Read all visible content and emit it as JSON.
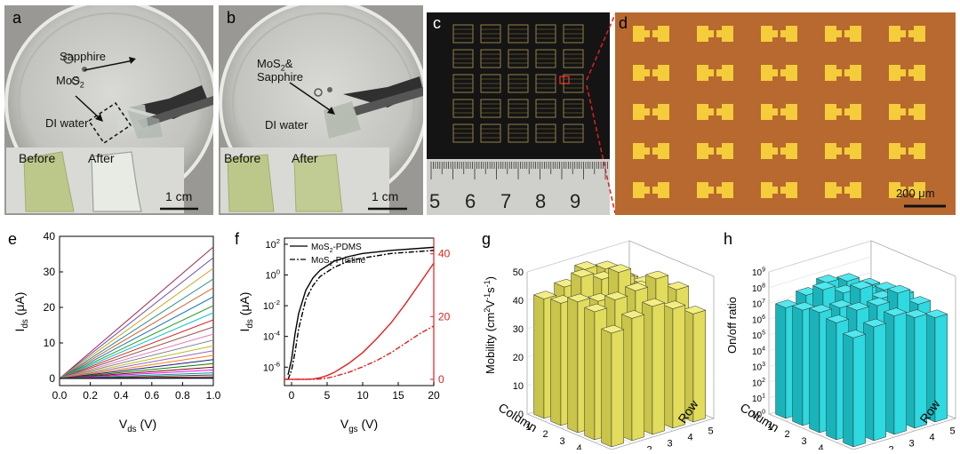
{
  "panels": {
    "a": {
      "label": "a",
      "sapphire": "Sapphire",
      "mos2": "MoS",
      "mos2_sub": "2",
      "water": "DI water",
      "before": "Before",
      "after": "After",
      "scale": "1 cm"
    },
    "b": {
      "label": "b",
      "mos2_line1": "MoS",
      "mos2_sub": "2",
      "mos2_amp": "&",
      "sapphire": "Sapphire",
      "water": "DI water",
      "before": "Before",
      "after": "After",
      "scale": "1 cm"
    },
    "c": {
      "label": "c",
      "ruler_numbers": [
        "5",
        "6",
        "7",
        "8",
        "9"
      ]
    },
    "d": {
      "label": "d",
      "scale": "200 μm"
    },
    "e": {
      "label": "e"
    },
    "f": {
      "label": "f"
    },
    "g": {
      "label": "g"
    },
    "h": {
      "label": "h"
    }
  },
  "chart_data": [
    {
      "panel": "e",
      "type": "line",
      "xlabel": "V",
      "xlabel_sub": "ds",
      "xlabel_unit": "(V)",
      "ylabel": "I",
      "ylabel_sub": "ds",
      "ylabel_unit": "(μA)",
      "xlim": [
        0.0,
        1.0
      ],
      "ylim": [
        -2,
        40
      ],
      "xticks": [
        "0.0",
        "0.2",
        "0.4",
        "0.6",
        "0.8",
        "1.0"
      ],
      "yticks": [
        "0",
        "10",
        "20",
        "30",
        "40"
      ],
      "x": [
        0,
        1.0
      ],
      "series_end_values": [
        37,
        34,
        31,
        28,
        25.5,
        23,
        20.5,
        18.5,
        16.5,
        14.5,
        12.5,
        10.8,
        9.2,
        7.8,
        6.5,
        5.3,
        4.2,
        3.2,
        2.4,
        1.6,
        1.0,
        0.5,
        0.2,
        0.05
      ],
      "series_colors": [
        "#9c2a5a",
        "#6b4fa6",
        "#c9a227",
        "#2a8a8a",
        "#d45a2a",
        "#1f77b4",
        "#2ca02c",
        "#17becf",
        "#d62728",
        "#8c564b",
        "#e377c2",
        "#7f7f7f",
        "#bcbd22",
        "#9467bd",
        "#ff7f0e",
        "#1a1a80",
        "#008000",
        "#800000",
        "#ff00ff",
        "#00a0a0",
        "#404040",
        "#a05000",
        "#0000ff",
        "#000000"
      ]
    },
    {
      "panel": "f",
      "type": "line",
      "xlabel": "V",
      "xlabel_sub": "gs",
      "xlabel_unit": "(V)",
      "ylabel": "I",
      "ylabel_sub": "ds",
      "ylabel_unit": "(μA)",
      "xlim": [
        -1,
        20
      ],
      "xticks": [
        "0",
        "5",
        "10",
        "15",
        "20"
      ],
      "ylim_log": [
        -7.2,
        2.4
      ],
      "yticks_log": [
        "10^2",
        "10^0",
        "10^-2",
        "10^-4",
        "10^-6"
      ],
      "y2lim": [
        -2,
        45
      ],
      "y2ticks": [
        "0",
        "20",
        "40"
      ],
      "legend": [
        "MoS2-PDMS",
        "MoS2-Pristine"
      ],
      "legend_text": {
        "a": "MoS",
        "a_sub": "2",
        "a_rest": "-PDMS",
        "b": "MoS",
        "b_sub": "2",
        "b_rest": "-Pristine"
      },
      "series": [
        {
          "name": "MoS2-PDMS (log)",
          "x": [
            -0.5,
            0,
            0.5,
            1,
            2,
            3,
            4,
            6,
            8,
            10,
            14,
            20
          ],
          "log10_y": [
            -6.5,
            -5.5,
            -3.8,
            -2.5,
            -1.0,
            -0.2,
            0.3,
            0.9,
            1.2,
            1.4,
            1.6,
            1.8
          ]
        },
        {
          "name": "MoS2-Pristine (log)",
          "x": [
            -0.5,
            0,
            0.5,
            1,
            2,
            3,
            4,
            6,
            8,
            10,
            14,
            20
          ],
          "log10_y": [
            -6.8,
            -6.2,
            -5.0,
            -3.5,
            -1.6,
            -0.7,
            -0.1,
            0.5,
            0.9,
            1.1,
            1.4,
            1.6
          ]
        },
        {
          "name": "MoS2-PDMS (linear)",
          "x": [
            -1,
            2,
            3,
            4,
            5,
            6,
            8,
            10,
            12,
            14,
            16,
            18,
            20
          ],
          "y": [
            0,
            0,
            0.1,
            0.5,
            1.2,
            2.2,
            5,
            8.5,
            13,
            18,
            24,
            30.5,
            37
          ]
        },
        {
          "name": "MoS2-Pristine (linear)",
          "x": [
            -1,
            3,
            4,
            5,
            6,
            8,
            10,
            12,
            14,
            16,
            18,
            20
          ],
          "y": [
            0,
            0,
            0.1,
            0.4,
            0.9,
            2.2,
            4,
            6,
            8.5,
            11.5,
            14.5,
            17
          ]
        }
      ]
    },
    {
      "panel": "g",
      "type": "bar3d",
      "zlabel": "Mobility (cm²V⁻¹s⁻¹)",
      "zlabel_parts": {
        "a": "Mobility (cm",
        "sup1": "2",
        "b": "V",
        "sup2": "-1",
        "c": "s",
        "sup3": "-1",
        "d": ")"
      },
      "xlabel": "Column",
      "ylabel": "Row",
      "ticks": [
        "1",
        "2",
        "3",
        "4",
        "5"
      ],
      "zticks": [
        "0",
        "10",
        "20",
        "30",
        "40",
        "50"
      ],
      "zlim": [
        0,
        55
      ],
      "values": [
        [
          42,
          44,
          48,
          46,
          40
        ],
        [
          43,
          50,
          47,
          45,
          41
        ],
        [
          46,
          44,
          52,
          44,
          42
        ],
        [
          45,
          47,
          48,
          50,
          44
        ],
        [
          40,
          43,
          45,
          42,
          38
        ]
      ]
    },
    {
      "panel": "h",
      "type": "bar3d",
      "zlabel": "On/off ratio",
      "xlabel": "Column",
      "ylabel": "Row",
      "ticks": [
        "1",
        "2",
        "3",
        "4",
        "5"
      ],
      "zticks": [
        "10^0",
        "10^1",
        "10^2",
        "10^3",
        "10^4",
        "10^5",
        "10^6",
        "10^7",
        "10^8",
        "10^9"
      ],
      "zlim_log": [
        0,
        9
      ],
      "log10_values": [
        [
          7.0,
          7.4,
          7.8,
          7.5,
          6.8
        ],
        [
          7.3,
          8.2,
          7.6,
          7.4,
          7.0
        ],
        [
          7.6,
          7.5,
          8.3,
          7.3,
          7.1
        ],
        [
          7.4,
          7.8,
          7.7,
          8.1,
          7.0
        ],
        [
          6.9,
          7.2,
          7.5,
          7.0,
          6.6
        ]
      ]
    }
  ],
  "colors": {
    "gold_bar": "#f2ee84",
    "cyan_bar": "#2ed9e0",
    "red_axis": "#e02020",
    "chip_bg": "#b8692f",
    "pad_gold": "#f4cc3c"
  }
}
